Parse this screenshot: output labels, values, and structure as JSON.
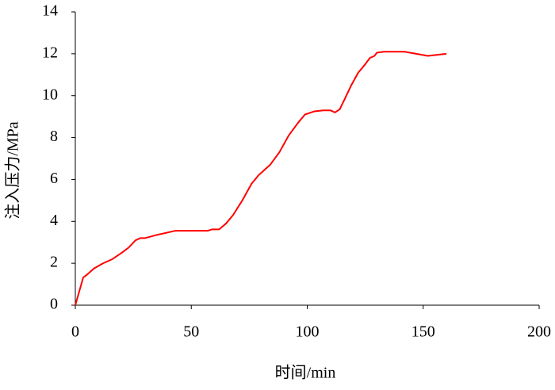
{
  "chart_data": {
    "type": "line",
    "x_label": "时间/min",
    "y_label": "注入压力/MPa",
    "xlim": [
      0,
      200
    ],
    "xticks": [
      0,
      50,
      100,
      150,
      200
    ],
    "ylim": [
      0,
      14
    ],
    "yticks": [
      0,
      2,
      4,
      6,
      8,
      10,
      12,
      14
    ],
    "grid": false,
    "series": [
      {
        "color": "#ff0000",
        "x": [
          0,
          3.4,
          5,
          8,
          12,
          16,
          20,
          23,
          26,
          28,
          30,
          35,
          43,
          50,
          57,
          59,
          62,
          65,
          68,
          72,
          76,
          79,
          84,
          88,
          92,
          96,
          99,
          103,
          107,
          110,
          112,
          114,
          116,
          119,
          122,
          125,
          127,
          129,
          130,
          133,
          142,
          152,
          160
        ],
        "values": [
          0,
          1.32,
          1.45,
          1.75,
          2.0,
          2.2,
          2.5,
          2.75,
          3.1,
          3.2,
          3.2,
          3.35,
          3.55,
          3.55,
          3.55,
          3.62,
          3.62,
          3.9,
          4.3,
          5.0,
          5.8,
          6.2,
          6.7,
          7.3,
          8.1,
          8.7,
          9.1,
          9.25,
          9.3,
          9.3,
          9.2,
          9.35,
          9.8,
          10.5,
          11.1,
          11.5,
          11.8,
          11.9,
          12.05,
          12.1,
          12.1,
          11.9,
          12.0
        ]
      }
    ]
  }
}
